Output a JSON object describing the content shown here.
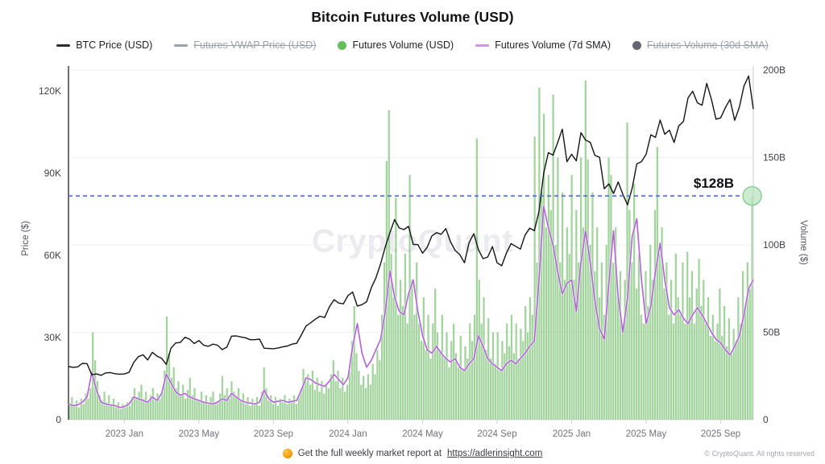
{
  "title": "Bitcoin Futures Volume (USD)",
  "legend": [
    {
      "label": "BTC Price (USD)",
      "marker": "line",
      "color": "#2b2b2e",
      "disabled": false
    },
    {
      "label": "Futures VWAP Price (USD)",
      "marker": "line",
      "color": "#9aa3ad",
      "disabled": true
    },
    {
      "label": "Futures Volume (USD)",
      "marker": "circle",
      "color": "#65bd5c",
      "disabled": false
    },
    {
      "label": "Futures Volume (7d SMA)",
      "marker": "line",
      "color": "#cf93e8",
      "disabled": false
    },
    {
      "label": "Futures Volume (30d SMA)",
      "marker": "circle",
      "color": "#65656f",
      "disabled": true
    }
  ],
  "watermark": "CryptoQuant",
  "annotation": {
    "label": "$128B",
    "value_billions": 128,
    "line_color": "#4f6bf0"
  },
  "footer": {
    "icon": "orange-circle",
    "text": "Get the full weekly market report at",
    "link": "https://adlerinsight.com"
  },
  "copyright": "© CryptoQuant. All rights reserved",
  "chart_data": {
    "type": "bar+line",
    "time_span": "Oct 2022 – Oct 2025",
    "x_tick_labels": [
      "2023 Jan",
      "2023 May",
      "2023 Sep",
      "2024 Jan",
      "2024 May",
      "2024 Sep",
      "2025 Jan",
      "2025 May",
      "2025 Sep"
    ],
    "x_tick_month_index": [
      3,
      7,
      11,
      15,
      19,
      23,
      27,
      31,
      35
    ],
    "months_total": 37,
    "left_axis": {
      "label": "Price ($)",
      "tick_labels": [
        "0",
        "30K",
        "60K",
        "90K",
        "120K"
      ],
      "tick_values_k": [
        0,
        30,
        60,
        90,
        120
      ],
      "range_k": [
        0,
        128.5
      ]
    },
    "right_axis": {
      "label": "Volume ($)",
      "tick_labels": [
        "0",
        "50B",
        "100B",
        "150B",
        "200B"
      ],
      "tick_values_b": [
        0,
        50,
        100,
        150,
        200
      ],
      "range_b": [
        0,
        201.4
      ]
    },
    "grid": "horizontal-volume-ticks",
    "threshold_line": {
      "value_b": 128,
      "style": "dashed",
      "color": "#4f6bf0"
    },
    "highlight_point": {
      "series": "Futures Volume (USD)",
      "position": "last",
      "value_b": 128
    },
    "series": [
      {
        "name": "BTC Price (USD)",
        "type": "line",
        "axis": "left",
        "unit": "thousand USD",
        "color": "#141414",
        "values": [
          19.4,
          19.1,
          19.3,
          20.6,
          20.4,
          16.4,
          16.7,
          16.2,
          17.1,
          17.2,
          16.8,
          16.6,
          16.7,
          17.3,
          20.9,
          23.0,
          23.7,
          21.8,
          24.6,
          23.2,
          22.4,
          20.2,
          26.1,
          28.0,
          28.2,
          30.1,
          29.4,
          27.8,
          28.9,
          27.2,
          26.8,
          27.6,
          27.2,
          25.6,
          26.5,
          30.5,
          30.6,
          30.2,
          29.9,
          29.2,
          29.2,
          29.4,
          26.1,
          26.0,
          25.9,
          26.2,
          26.6,
          26.9,
          27.6,
          27.9,
          31.0,
          34.2,
          35.4,
          36.7,
          37.8,
          37.3,
          41.2,
          43.8,
          42.6,
          42.3,
          45.3,
          46.6,
          41.5,
          42.0,
          43.1,
          48.2,
          51.8,
          56.9,
          63.1,
          68.3,
          73.1,
          70.0,
          69.4,
          70.6,
          64.0,
          63.9,
          60.8,
          62.9,
          67.1,
          68.3,
          67.7,
          69.8,
          65.0,
          61.8,
          60.3,
          57.3,
          64.7,
          67.9,
          62.1,
          58.8,
          59.4,
          63.2,
          57.3,
          56.2,
          60.8,
          64.3,
          63.3,
          62.3,
          67.4,
          69.9,
          69.0,
          76.0,
          89.9,
          97.5,
          96.6,
          101.1,
          106.1,
          94.2,
          96.9,
          94.5,
          104.8,
          102.1,
          101.3,
          96.5,
          95.8,
          84.3,
          86.1,
          82.6,
          86.8,
          82.3,
          78.4,
          84.6,
          93.4,
          94.2,
          96.9,
          104.0,
          103.1,
          109.4,
          104.2,
          105.7,
          101.2,
          107.3,
          108.9,
          117.5,
          119.9,
          115.7,
          114.8,
          122.8,
          117.0,
          109.7,
          110.2,
          113.9,
          116.9,
          109.3,
          114.1,
          121.8,
          125.5,
          113.4
        ]
      },
      {
        "name": "Futures Volume (USD)",
        "type": "bar",
        "axis": "right",
        "unit": "billion USD",
        "color": "#5eb457",
        "values": [
          9,
          13,
          8,
          11,
          7,
          12,
          9,
          15,
          12,
          18,
          50,
          34,
          22,
          14,
          11,
          16,
          10,
          14,
          8,
          12,
          7,
          10,
          6,
          9,
          7,
          10,
          8,
          13,
          18,
          12,
          16,
          20,
          12,
          16,
          10,
          14,
          18,
          11,
          15,
          12,
          16,
          28,
          59,
          38,
          24,
          30,
          18,
          22,
          14,
          20,
          12,
          17,
          24,
          14,
          18,
          12,
          11,
          16,
          10,
          14,
          9,
          13,
          16,
          10,
          10,
          15,
          25,
          14,
          18,
          12,
          22,
          16,
          13,
          18,
          11,
          15,
          9,
          13,
          8,
          12,
          9,
          13,
          8,
          16,
          30,
          18,
          11,
          14,
          9,
          13,
          8,
          12,
          10,
          14,
          9,
          12,
          10,
          14,
          9,
          13,
          18,
          29,
          22,
          26,
          20,
          28,
          17,
          24,
          16,
          22,
          15,
          20,
          18,
          26,
          34,
          22,
          28,
          18,
          24,
          16,
          20,
          28,
          45,
          65,
          38,
          28,
          20,
          25,
          18,
          26,
          20,
          32,
          26,
          40,
          34,
          60,
          90,
          148,
          177,
          95,
          70,
          127,
          60,
          80,
          65,
          95,
          55,
          140,
          80,
          60,
          90,
          55,
          45,
          70,
          40,
          60,
          35,
          55,
          75,
          50,
          40,
          60,
          35,
          50,
          30,
          45,
          55,
          38,
          30,
          48,
          28,
          42,
          35,
          55,
          45,
          60,
          161,
          80,
          55,
          70,
          40,
          58,
          35,
          50,
          32,
          50,
          28,
          45,
          38,
          55,
          42,
          60,
          38,
          55,
          35,
          52,
          45,
          65,
          50,
          70,
          60,
          162,
          90,
          190,
          130,
          175,
          110,
          140,
          120,
          186,
          100,
          150,
          90,
          130,
          80,
          110,
          95,
          140,
          80,
          120,
          90,
          150,
          110,
          194,
          149,
          100,
          130,
          85,
          110,
          70,
          90,
          60,
          100,
          150,
          140,
          90,
          110,
          70,
          85,
          55,
          80,
          170,
          120,
          90,
          135,
          75,
          95,
          60,
          55,
          85,
          65,
          100,
          80,
          120,
          156,
          95,
          110,
          75,
          90,
          60,
          80,
          55,
          95,
          70,
          60,
          90,
          55,
          96,
          70,
          85,
          55,
          75,
          92,
          65,
          80,
          55,
          70,
          48,
          60,
          45,
          55,
          75,
          48,
          65,
          42,
          58,
          38,
          52,
          45,
          70,
          55,
          85,
          65,
          90,
          75,
          128
        ]
      },
      {
        "name": "Futures Volume (7d SMA)",
        "type": "line",
        "axis": "right",
        "unit": "billion USD",
        "color": "#b161d6",
        "values": [
          9,
          8,
          8.5,
          10,
          13,
          27,
          17,
          10,
          9,
          8.5,
          8,
          7,
          7.5,
          9,
          13,
          12,
          11,
          10,
          13,
          11,
          15,
          26,
          21,
          16,
          14,
          15,
          13,
          12,
          11,
          10,
          9.5,
          9,
          10,
          12,
          11,
          15,
          13,
          11,
          10,
          9.5,
          9,
          10,
          17,
          12,
          10,
          10.5,
          11,
          10,
          10.5,
          11,
          17,
          24,
          23,
          21,
          20,
          19,
          22,
          26,
          23,
          20,
          24,
          42,
          55,
          38,
          30,
          34,
          40,
          46,
          62,
          85,
          70,
          62,
          60,
          72,
          80,
          62,
          48,
          40,
          38,
          42,
          38,
          35,
          33,
          35,
          30,
          28,
          32,
          35,
          48,
          42,
          35,
          32,
          30,
          28,
          32,
          34,
          32,
          35,
          38,
          42,
          45,
          80,
          122,
          110,
          100,
          85,
          72,
          78,
          80,
          62,
          90,
          108,
          90,
          68,
          52,
          46,
          78,
          108,
          70,
          50,
          70,
          105,
          115,
          80,
          55,
          65,
          85,
          101,
          80,
          64,
          60,
          63,
          58,
          55,
          60,
          64,
          60,
          55,
          50,
          46,
          44,
          40,
          37,
          42,
          48,
          60,
          75,
          80
        ]
      }
    ]
  }
}
